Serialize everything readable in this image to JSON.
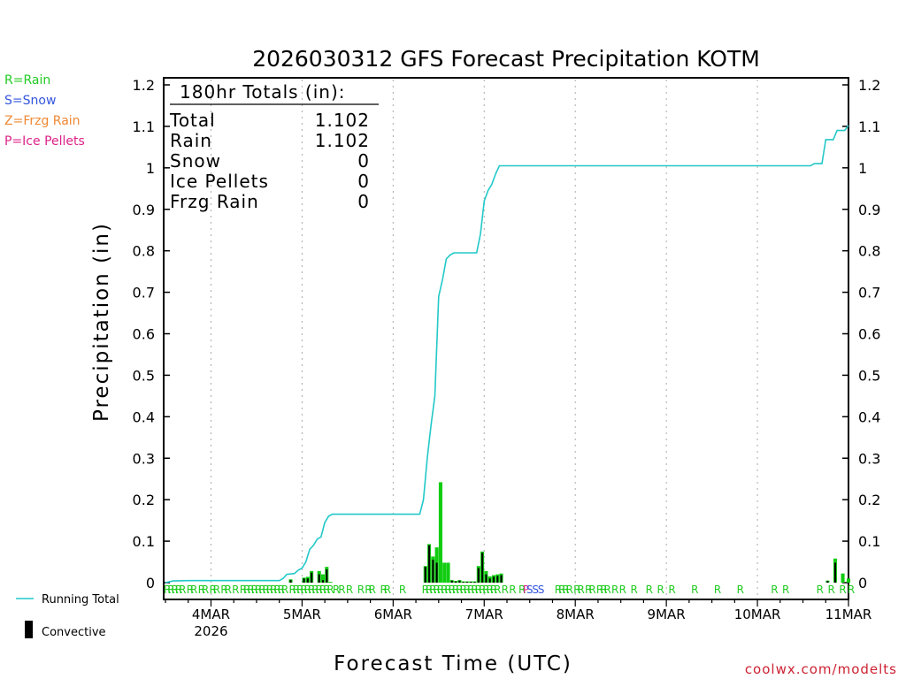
{
  "chart_data": {
    "type": "bar+line",
    "title": "2026030312 GFS Forecast Precipitation KOTM",
    "xlabel": "Forecast Time (UTC)",
    "ylabel": "Precipitation (in)",
    "ylim": [
      0,
      1.2
    ],
    "yticks": [
      "0",
      "0.1",
      "0.2",
      "0.3",
      "0.4",
      "0.5",
      "0.6",
      "0.7",
      "0.8",
      "0.9",
      "1",
      "1.1",
      "1.2"
    ],
    "xlim_hours": [
      0,
      180
    ],
    "xticks": [
      {
        "hour": 12,
        "label": "4MAR",
        "sub": "2026"
      },
      {
        "hour": 36,
        "label": "5MAR",
        "sub": ""
      },
      {
        "hour": 60,
        "label": "6MAR",
        "sub": ""
      },
      {
        "hour": 84,
        "label": "7MAR",
        "sub": ""
      },
      {
        "hour": 108,
        "label": "8MAR",
        "sub": ""
      },
      {
        "hour": 132,
        "label": "9MAR",
        "sub": ""
      },
      {
        "hour": 156,
        "label": "10MAR",
        "sub": ""
      },
      {
        "hour": 180,
        "label": "11MAR",
        "sub": ""
      }
    ],
    "precip_type_legend": [
      {
        "label": "R=Rain",
        "color": "#22cc22"
      },
      {
        "label": "S=Snow",
        "color": "#3355dd"
      },
      {
        "label": "Z=Frzg Rain",
        "color": "#ee8833"
      },
      {
        "label": "P=Ice Pellets",
        "color": "#dd2288"
      }
    ],
    "series_legend": [
      {
        "label": "Running Total",
        "color": "#22c8c8"
      },
      {
        "label": "Convective",
        "color": "#000000"
      }
    ],
    "totals": {
      "heading": "180hr Totals (in):",
      "rows": [
        {
          "name": "Total",
          "value": "1.102"
        },
        {
          "name": "Rain",
          "value": "1.102"
        },
        {
          "name": "Snow",
          "value": "0"
        },
        {
          "name": "Ice Pellets",
          "value": "0"
        },
        {
          "name": "Frzg Rain",
          "value": "0"
        }
      ]
    },
    "running_total": [
      [
        0,
        0
      ],
      [
        2,
        0.004
      ],
      [
        6,
        0.005
      ],
      [
        12,
        0.005
      ],
      [
        20,
        0.005
      ],
      [
        30,
        0.005
      ],
      [
        31,
        0.01
      ],
      [
        32,
        0.02
      ],
      [
        34,
        0.022
      ],
      [
        35,
        0.03
      ],
      [
        36,
        0.035
      ],
      [
        37,
        0.05
      ],
      [
        38,
        0.08
      ],
      [
        39,
        0.09
      ],
      [
        40,
        0.105
      ],
      [
        41,
        0.11
      ],
      [
        42,
        0.145
      ],
      [
        43,
        0.16
      ],
      [
        44,
        0.165
      ],
      [
        50,
        0.165
      ],
      [
        60,
        0.165
      ],
      [
        67,
        0.165
      ],
      [
        68,
        0.2
      ],
      [
        69,
        0.3
      ],
      [
        70,
        0.38
      ],
      [
        71,
        0.45
      ],
      [
        72,
        0.69
      ],
      [
        73,
        0.73
      ],
      [
        74,
        0.78
      ],
      [
        75,
        0.79
      ],
      [
        76,
        0.795
      ],
      [
        82,
        0.795
      ],
      [
        83,
        0.84
      ],
      [
        84,
        0.92
      ],
      [
        85,
        0.945
      ],
      [
        86,
        0.96
      ],
      [
        87,
        0.985
      ],
      [
        88,
        1.005
      ],
      [
        100,
        1.005
      ],
      [
        120,
        1.005
      ],
      [
        140,
        1.005
      ],
      [
        170,
        1.005
      ],
      [
        171,
        1.01
      ],
      [
        173,
        1.01
      ],
      [
        174,
        1.068
      ],
      [
        176,
        1.068
      ],
      [
        177,
        1.09
      ],
      [
        179,
        1.09
      ],
      [
        180,
        1.102
      ]
    ],
    "bars": [
      {
        "hour": 33,
        "value": 0.008,
        "conv": 0.006
      },
      {
        "hour": 36.5,
        "value": 0.012,
        "conv": 0.01
      },
      {
        "hour": 37.5,
        "value": 0.014,
        "conv": 0.01
      },
      {
        "hour": 38.5,
        "value": 0.028,
        "conv": 0.024
      },
      {
        "hour": 40.5,
        "value": 0.028,
        "conv": 0.02
      },
      {
        "hour": 41.5,
        "value": 0.02,
        "conv": 0.006
      },
      {
        "hour": 42.5,
        "value": 0.038,
        "conv": 0.032
      },
      {
        "hour": 43.5,
        "value": 0.002,
        "conv": 0
      },
      {
        "hour": 68.5,
        "value": 0.04,
        "conv": 0.038
      },
      {
        "hour": 69.5,
        "value": 0.093,
        "conv": 0.09
      },
      {
        "hour": 70.5,
        "value": 0.063,
        "conv": 0.055
      },
      {
        "hour": 71.5,
        "value": 0.085,
        "conv": 0.048
      },
      {
        "hour": 72.5,
        "value": 0.242,
        "conv": 0
      },
      {
        "hour": 73.5,
        "value": 0.048,
        "conv": 0
      },
      {
        "hour": 74.5,
        "value": 0.048,
        "conv": 0
      },
      {
        "hour": 75.5,
        "value": 0.006,
        "conv": 0.005
      },
      {
        "hour": 76.5,
        "value": 0.004,
        "conv": 0.003
      },
      {
        "hour": 77.5,
        "value": 0.006,
        "conv": 0.005
      },
      {
        "hour": 78.5,
        "value": 0.003,
        "conv": 0.002
      },
      {
        "hour": 79.5,
        "value": 0.003,
        "conv": 0.002
      },
      {
        "hour": 80.5,
        "value": 0.003,
        "conv": 0.002
      },
      {
        "hour": 81.5,
        "value": 0.003,
        "conv": 0.002
      },
      {
        "hour": 82.5,
        "value": 0.04,
        "conv": 0.035
      },
      {
        "hour": 83.5,
        "value": 0.075,
        "conv": 0.072
      },
      {
        "hour": 84.5,
        "value": 0.028,
        "conv": 0.02
      },
      {
        "hour": 85.5,
        "value": 0.015,
        "conv": 0.01
      },
      {
        "hour": 86.5,
        "value": 0.018,
        "conv": 0.014
      },
      {
        "hour": 87.5,
        "value": 0.02,
        "conv": 0.016
      },
      {
        "hour": 88.5,
        "value": 0.022,
        "conv": 0.018
      },
      {
        "hour": 174.5,
        "value": 0.005,
        "conv": 0.004
      },
      {
        "hour": 176.5,
        "value": 0.058,
        "conv": 0.048
      },
      {
        "hour": 178.5,
        "value": 0.022,
        "conv": 0
      },
      {
        "hour": 180,
        "value": 0.01,
        "conv": 0
      }
    ],
    "ptype_labels": [
      {
        "hour": 0.5,
        "text": "R"
      },
      {
        "hour": 1.5,
        "text": "R"
      },
      {
        "hour": 2.5,
        "text": "R"
      },
      {
        "hour": 3.5,
        "text": "R"
      },
      {
        "hour": 4.5,
        "text": "R"
      },
      {
        "hour": 6.5,
        "text": "R"
      },
      {
        "hour": 7.5,
        "text": "R"
      },
      {
        "hour": 9.5,
        "text": "R"
      },
      {
        "hour": 10.5,
        "text": "R"
      },
      {
        "hour": 12.5,
        "text": "R"
      },
      {
        "hour": 13.5,
        "text": "R"
      },
      {
        "hour": 15.5,
        "text": "R"
      },
      {
        "hour": 16.5,
        "text": "R"
      },
      {
        "hour": 18.5,
        "text": "R"
      },
      {
        "hour": 20.5,
        "text": "R"
      },
      {
        "hour": 21.5,
        "text": "R"
      },
      {
        "hour": 22.5,
        "text": "R"
      },
      {
        "hour": 23.5,
        "text": "R"
      },
      {
        "hour": 24.5,
        "text": "R"
      },
      {
        "hour": 25.5,
        "text": "R"
      },
      {
        "hour": 26.5,
        "text": "R"
      },
      {
        "hour": 27.5,
        "text": "R"
      },
      {
        "hour": 28.5,
        "text": "R"
      },
      {
        "hour": 29.5,
        "text": "R"
      },
      {
        "hour": 30.5,
        "text": "R"
      },
      {
        "hour": 31.5,
        "text": "R"
      },
      {
        "hour": 33.5,
        "text": "R"
      },
      {
        "hour": 34.5,
        "text": "R"
      },
      {
        "hour": 35.5,
        "text": "R"
      },
      {
        "hour": 36.5,
        "text": "R"
      },
      {
        "hour": 37.5,
        "text": "R"
      },
      {
        "hour": 38.5,
        "text": "R"
      },
      {
        "hour": 39.5,
        "text": "R"
      },
      {
        "hour": 40.5,
        "text": "R"
      },
      {
        "hour": 41.5,
        "text": "R"
      },
      {
        "hour": 42.5,
        "text": "R"
      },
      {
        "hour": 43.5,
        "text": "R"
      },
      {
        "hour": 45,
        "text": "R"
      },
      {
        "hour": 46.5,
        "text": "R"
      },
      {
        "hour": 48.5,
        "text": "R"
      },
      {
        "hour": 51.5,
        "text": "R"
      },
      {
        "hour": 53.5,
        "text": "R"
      },
      {
        "hour": 54.5,
        "text": "R"
      },
      {
        "hour": 57.5,
        "text": "R"
      },
      {
        "hour": 58.5,
        "text": "R"
      },
      {
        "hour": 62.5,
        "text": "R"
      },
      {
        "hour": 68.5,
        "text": "R"
      },
      {
        "hour": 69.5,
        "text": "R"
      },
      {
        "hour": 70.5,
        "text": "R"
      },
      {
        "hour": 71.5,
        "text": "R"
      },
      {
        "hour": 72.5,
        "text": "R"
      },
      {
        "hour": 73.5,
        "text": "R"
      },
      {
        "hour": 74.5,
        "text": "R"
      },
      {
        "hour": 75.5,
        "text": "R"
      },
      {
        "hour": 76.5,
        "text": "R"
      },
      {
        "hour": 77.5,
        "text": "R"
      },
      {
        "hour": 78.5,
        "text": "R"
      },
      {
        "hour": 79.5,
        "text": "R"
      },
      {
        "hour": 80.5,
        "text": "R"
      },
      {
        "hour": 81.5,
        "text": "R"
      },
      {
        "hour": 82.5,
        "text": "R"
      },
      {
        "hour": 83.5,
        "text": "R"
      },
      {
        "hour": 84.5,
        "text": "R"
      },
      {
        "hour": 85.5,
        "text": "R"
      },
      {
        "hour": 86.5,
        "text": "R"
      },
      {
        "hour": 87.5,
        "text": "R"
      },
      {
        "hour": 89.5,
        "text": "R"
      },
      {
        "hour": 91.5,
        "text": "R"
      },
      {
        "hour": 94,
        "text": "R"
      },
      {
        "hour": 95,
        "text": "P"
      },
      {
        "hour": 96,
        "text": "S"
      },
      {
        "hour": 97.5,
        "text": "S"
      },
      {
        "hour": 99,
        "text": "S"
      },
      {
        "hour": 103.5,
        "text": "R"
      },
      {
        "hour": 104.5,
        "text": "R"
      },
      {
        "hour": 105.5,
        "text": "R"
      },
      {
        "hour": 106.5,
        "text": "R"
      },
      {
        "hour": 108.5,
        "text": "R"
      },
      {
        "hour": 109.5,
        "text": "R"
      },
      {
        "hour": 111.5,
        "text": "R"
      },
      {
        "hour": 112.5,
        "text": "R"
      },
      {
        "hour": 114.5,
        "text": "R"
      },
      {
        "hour": 115.5,
        "text": "R"
      },
      {
        "hour": 116.5,
        "text": "R"
      },
      {
        "hour": 118.5,
        "text": "R"
      },
      {
        "hour": 120.5,
        "text": "R"
      },
      {
        "hour": 123.5,
        "text": "R"
      },
      {
        "hour": 127.5,
        "text": "R"
      },
      {
        "hour": 130.5,
        "text": "R"
      },
      {
        "hour": 133.5,
        "text": "R"
      },
      {
        "hour": 139.5,
        "text": "R"
      },
      {
        "hour": 145.5,
        "text": "R"
      },
      {
        "hour": 151.5,
        "text": "R"
      },
      {
        "hour": 160.5,
        "text": "R"
      },
      {
        "hour": 163.5,
        "text": "R"
      },
      {
        "hour": 172.5,
        "text": "R"
      },
      {
        "hour": 175.5,
        "text": "R"
      },
      {
        "hour": 178.5,
        "text": "R"
      },
      {
        "hour": 181,
        "text": "R"
      }
    ],
    "credit": "coolwx.com/modelts"
  }
}
